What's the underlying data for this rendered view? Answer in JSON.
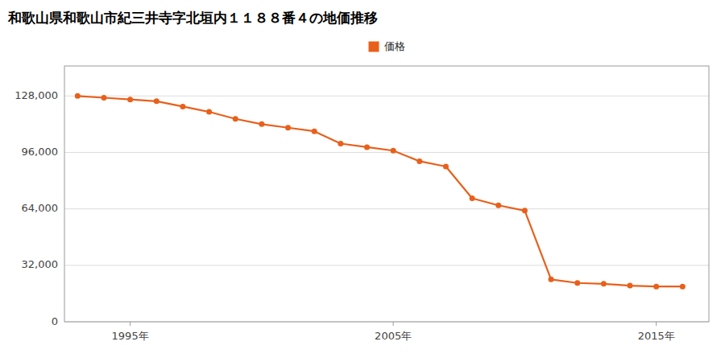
{
  "chart_data": {
    "type": "line",
    "title": "和歌山県和歌山市紀三井寺字北垣内１１８８番４の地価推移",
    "x": [
      1993,
      1994,
      1995,
      1996,
      1997,
      1998,
      1999,
      2000,
      2001,
      2002,
      2003,
      2004,
      2005,
      2006,
      2007,
      2008,
      2009,
      2010,
      2011,
      2012,
      2013,
      2014,
      2015,
      2016
    ],
    "series": [
      {
        "name": "価格",
        "color": "#e8601c",
        "marker": "circle",
        "values": [
          128000,
          127000,
          126000,
          125000,
          122000,
          119000,
          115000,
          112000,
          110000,
          108000,
          101000,
          99000,
          97000,
          91000,
          88000,
          70000,
          66000,
          63000,
          24000,
          22000,
          21500,
          20500,
          20000,
          20000
        ]
      }
    ],
    "xlim": [
      1992.5,
      2017
    ],
    "xticks": [
      {
        "value": 1995,
        "label": "1995年"
      },
      {
        "value": 2005,
        "label": "2005年"
      },
      {
        "value": 2015,
        "label": "2015年"
      }
    ],
    "ylim": [
      0,
      145000
    ],
    "yticks": [
      0,
      {
        "value": 32000,
        "label": "32,000"
      },
      {
        "value": 64000,
        "label": "64,000"
      },
      {
        "value": 96000,
        "label": "96,000"
      },
      {
        "value": 128000,
        "label": "128,000"
      }
    ],
    "grid": true,
    "legend": "top"
  }
}
